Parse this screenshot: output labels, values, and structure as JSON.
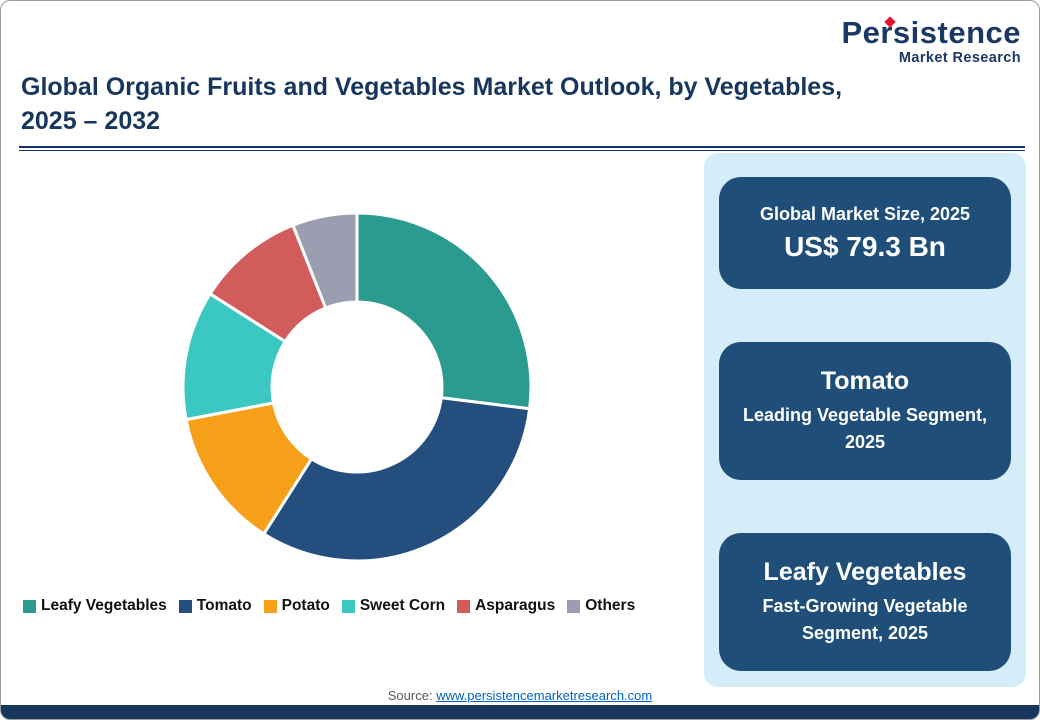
{
  "theme": {
    "navy": "#17365D",
    "card_navy": "#1F4E79",
    "panel_blue": "#D5EDF9",
    "link_blue": "#0563C1",
    "logo_navy": "#1B3764",
    "logo_red": "#E8112D",
    "bg": "#FFFFFF"
  },
  "logo": {
    "brand": "Persistence",
    "tagline": "Market Research"
  },
  "header": {
    "title_line1": "Global Organic Fruits and Vegetables Market Outlook, by Vegetables,",
    "title_line2": "2025 – 2032"
  },
  "chart_data": {
    "type": "pie",
    "subtype": "donut",
    "title": "",
    "categories": [
      "Leafy Vegetables",
      "Tomato",
      "Potato",
      "Sweet Corn",
      "Asparagus",
      "Others"
    ],
    "values": [
      27,
      32,
      13,
      12,
      10,
      6
    ],
    "values_note": "percent share estimated from arc angles; no data labels shown in figure",
    "colors": [
      "#2B9B8F",
      "#234E7E",
      "#F6A01A",
      "#3BC8C3",
      "#D25B5B",
      "#9D9DB1"
    ],
    "legend_position": "bottom",
    "start_angle_deg": 0,
    "direction": "clockwise",
    "inner_radius_ratio": 0.49
  },
  "panel": {
    "cards": [
      {
        "key": "global-market-size-card",
        "style": "value-card",
        "heading": "Global Market Size, 2025",
        "value": "US$ 79.3 Bn"
      },
      {
        "key": "leading-segment-card",
        "style": "segment-card",
        "heading": "Tomato",
        "value": "Leading Vegetable Segment, 2025"
      },
      {
        "key": "fast-growing-segment-card",
        "style": "segment-card",
        "heading": "Leafy Vegetables",
        "value": "Fast-Growing Vegetable Segment, 2025"
      }
    ]
  },
  "footer": {
    "source_label": "Source:",
    "source_link_text": "www.persistencemarketresearch.com"
  }
}
